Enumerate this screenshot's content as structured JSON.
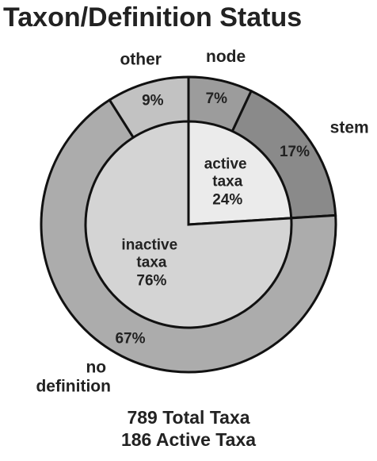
{
  "chart_data": {
    "type": "nested_pie",
    "title": "Taxon/Definition Status",
    "inner": {
      "categories": [
        "active taxa",
        "inactive taxa"
      ],
      "values": [
        24,
        76
      ],
      "value_labels": [
        "24%",
        "76%"
      ],
      "colors": [
        "#ebebeb",
        "#d4d4d4"
      ]
    },
    "outer": {
      "categories": [
        "node",
        "stem",
        "no definition",
        "other"
      ],
      "values": [
        7,
        17,
        67,
        9
      ],
      "value_labels": [
        "7%",
        "17%",
        "67%",
        "9%"
      ],
      "colors": [
        "#9c9c9c",
        "#8a8a8a",
        "#acacac",
        "#c2c2c2"
      ]
    },
    "annotations": [
      "789 Total Taxa",
      "186 Active Taxa"
    ]
  }
}
